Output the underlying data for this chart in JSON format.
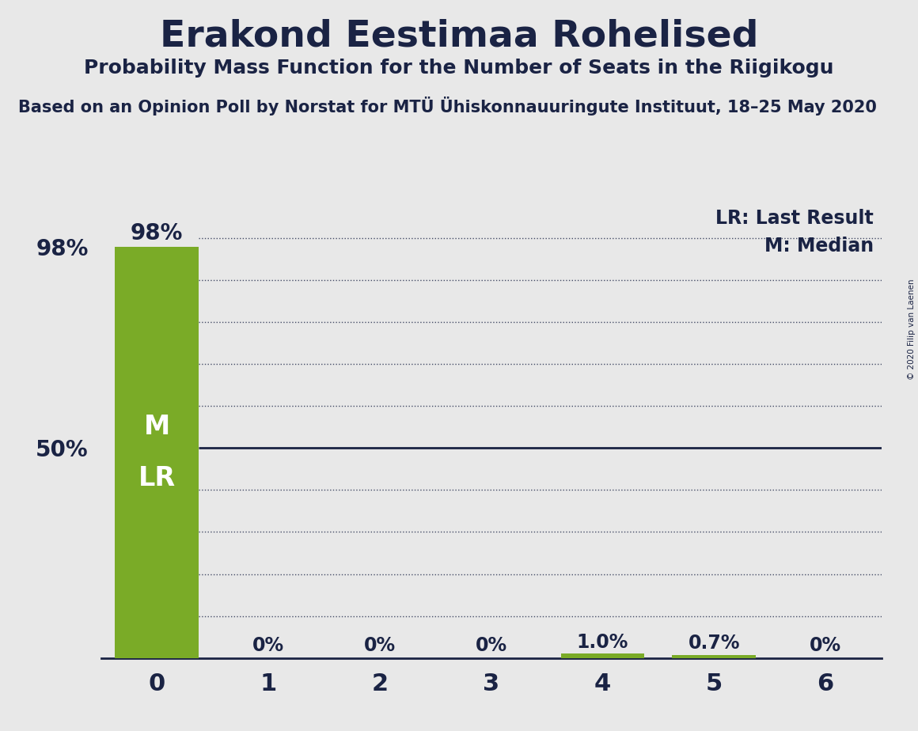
{
  "title": "Erakond Eestimaa Rohelised",
  "subtitle": "Probability Mass Function for the Number of Seats in the Riigikogu",
  "source_line": "Based on an Opinion Poll by Norstat for MTÜ Ühiskonnauuringute Instituut, 18–25 May 2020",
  "copyright": "© 2020 Filip van Laenen",
  "categories": [
    0,
    1,
    2,
    3,
    4,
    5,
    6
  ],
  "values": [
    0.98,
    0.0,
    0.0,
    0.0,
    0.01,
    0.007,
    0.0
  ],
  "bar_color": "#7aab27",
  "background_color": "#e8e8e8",
  "title_fontsize": 34,
  "subtitle_fontsize": 18,
  "source_fontsize": 15,
  "bar_label_color_inside": "#ffffff",
  "bar_label_color_outside": "#1a2344",
  "ytick_labels": [
    "50%",
    "98%"
  ],
  "ytick_values": [
    0.5,
    0.98
  ],
  "legend_lr": "LR: Last Result",
  "legend_m": "M: Median",
  "xlim": [
    -0.5,
    6.5
  ],
  "ylim": [
    0,
    1.08
  ],
  "bar_width": 0.75,
  "axis_color": "#1a2344",
  "grid_color": "#1a2344",
  "text_color": "#1a2344",
  "fifty_line_color": "#1a2344",
  "dot_grid_levels": [
    0.1,
    0.2,
    0.3,
    0.4,
    0.6,
    0.7,
    0.8,
    0.9,
    1.0
  ]
}
